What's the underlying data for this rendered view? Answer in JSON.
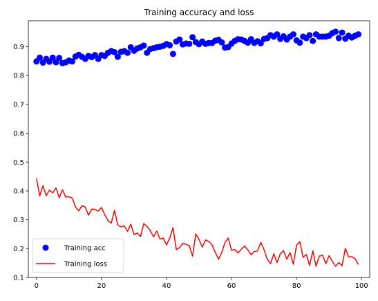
{
  "chart_data": {
    "type": "scatter+line",
    "title": "Training accuracy and loss",
    "xlabel": "",
    "ylabel": "",
    "xlim": [
      -2.5,
      102.5
    ],
    "ylim": [
      0.1,
      0.99
    ],
    "x_ticks": [
      0,
      20,
      40,
      60,
      80,
      100
    ],
    "y_ticks": [
      0.1,
      0.2,
      0.3,
      0.4,
      0.5,
      0.6,
      0.7,
      0.8,
      0.9
    ],
    "grid": false,
    "legend_position": "lower-left",
    "colors": {
      "acc": "#0000ff",
      "loss": "#ff0000"
    },
    "series": [
      {
        "name": "Training acc",
        "kind": "scatter",
        "values": [
          0.849,
          0.862,
          0.845,
          0.858,
          0.848,
          0.862,
          0.846,
          0.861,
          0.843,
          0.846,
          0.852,
          0.849,
          0.866,
          0.872,
          0.865,
          0.858,
          0.868,
          0.864,
          0.871,
          0.858,
          0.871,
          0.868,
          0.879,
          0.885,
          0.881,
          0.865,
          0.882,
          0.885,
          0.879,
          0.898,
          0.886,
          0.894,
          0.898,
          0.904,
          0.879,
          0.892,
          0.895,
          0.898,
          0.9,
          0.903,
          0.909,
          0.905,
          0.875,
          0.918,
          0.925,
          0.908,
          0.911,
          0.91,
          0.933,
          0.916,
          0.909,
          0.918,
          0.91,
          0.913,
          0.913,
          0.921,
          0.924,
          0.915,
          0.897,
          0.899,
          0.911,
          0.92,
          0.926,
          0.925,
          0.92,
          0.914,
          0.926,
          0.913,
          0.919,
          0.912,
          0.927,
          0.93,
          0.94,
          0.935,
          0.943,
          0.927,
          0.936,
          0.925,
          0.935,
          0.943,
          0.922,
          0.914,
          0.935,
          0.93,
          0.94,
          0.92,
          0.943,
          0.935,
          0.935,
          0.935,
          0.938,
          0.947,
          0.952,
          0.93,
          0.949,
          0.928,
          0.938,
          0.932,
          0.938,
          0.943
        ]
      },
      {
        "name": "Training loss",
        "kind": "line",
        "values": [
          0.443,
          0.383,
          0.418,
          0.383,
          0.403,
          0.393,
          0.411,
          0.377,
          0.404,
          0.379,
          0.38,
          0.375,
          0.345,
          0.331,
          0.349,
          0.344,
          0.316,
          0.337,
          0.336,
          0.33,
          0.343,
          0.317,
          0.297,
          0.289,
          0.333,
          0.282,
          0.275,
          0.279,
          0.26,
          0.285,
          0.249,
          0.254,
          0.242,
          0.287,
          0.277,
          0.263,
          0.241,
          0.261,
          0.233,
          0.237,
          0.213,
          0.237,
          0.273,
          0.197,
          0.203,
          0.219,
          0.215,
          0.21,
          0.174,
          0.251,
          0.232,
          0.205,
          0.23,
          0.225,
          0.213,
          0.187,
          0.163,
          0.187,
          0.222,
          0.237,
          0.194,
          0.197,
          0.185,
          0.198,
          0.209,
          0.196,
          0.179,
          0.19,
          0.192,
          0.222,
          0.196,
          0.163,
          0.148,
          0.182,
          0.152,
          0.182,
          0.193,
          0.164,
          0.186,
          0.146,
          0.212,
          0.224,
          0.17,
          0.18,
          0.142,
          0.192,
          0.139,
          0.174,
          0.177,
          0.148,
          0.176,
          0.156,
          0.139,
          0.152,
          0.141,
          0.201,
          0.171,
          0.172,
          0.165,
          0.145
        ]
      }
    ]
  }
}
